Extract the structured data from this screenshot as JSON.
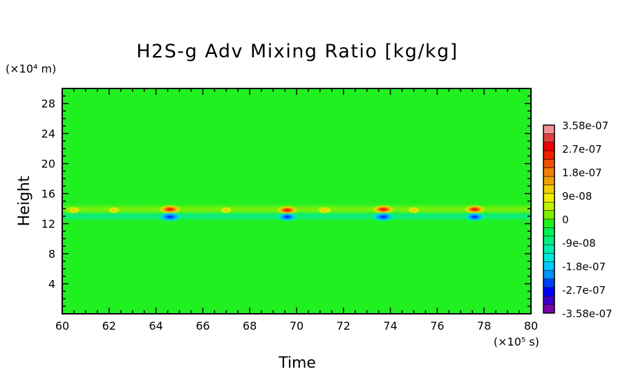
{
  "chart_data": {
    "type": "heatmap",
    "title": "H2S-g Adv Mixing Ratio [kg/kg]",
    "xlabel": "Time",
    "ylabel": "Height",
    "x_unit": "(×10⁵ s)",
    "y_unit": "(×10⁴ m)",
    "xlim": [
      60,
      80
    ],
    "ylim": [
      0,
      30
    ],
    "x_ticks": [
      "60",
      "62",
      "64",
      "66",
      "68",
      "70",
      "72",
      "74",
      "76",
      "78",
      "80"
    ],
    "y_ticks": [
      "4",
      "8",
      "12",
      "16",
      "20",
      "24",
      "28"
    ],
    "colorbar": {
      "labels": [
        "3.58e-07",
        "2.7e-07",
        "1.8e-07",
        "9e-08",
        "0",
        "-9e-08",
        "-1.8e-07",
        "-2.7e-07",
        "-3.58e-07"
      ],
      "range": [
        -3.58e-07,
        3.58e-07
      ],
      "colors": [
        "#7a00a8",
        "#3a00c8",
        "#0000ff",
        "#0040ff",
        "#0090ff",
        "#00c8ff",
        "#00e8e0",
        "#00f0b0",
        "#00f080",
        "#00f050",
        "#20f020",
        "#80f000",
        "#c0f000",
        "#f0f000",
        "#f0d000",
        "#f0a000",
        "#f08000",
        "#f05000",
        "#f02000",
        "#f00000",
        "#e04040",
        "#f09090"
      ]
    },
    "background_value": 0,
    "features": [
      {
        "time": 60.5,
        "height": 13.8,
        "value": 9e-08
      },
      {
        "time": 62.2,
        "height": 13.8,
        "value": 6e-08
      },
      {
        "time": 64.6,
        "height": 13.9,
        "value": 3e-07
      },
      {
        "time": 64.6,
        "height": 12.9,
        "value": -3e-07
      },
      {
        "time": 67.0,
        "height": 13.8,
        "value": 5e-08
      },
      {
        "time": 69.6,
        "height": 13.8,
        "value": 2.7e-07
      },
      {
        "time": 69.6,
        "height": 12.9,
        "value": -2.2e-07
      },
      {
        "time": 71.2,
        "height": 13.8,
        "value": 1.2e-07
      },
      {
        "time": 73.7,
        "height": 13.9,
        "value": 3e-07
      },
      {
        "time": 73.7,
        "height": 12.9,
        "value": -2.7e-07
      },
      {
        "time": 75.0,
        "height": 13.8,
        "value": 8e-08
      },
      {
        "time": 77.6,
        "height": 13.9,
        "value": 2.7e-07
      },
      {
        "time": 77.6,
        "height": 12.9,
        "value": -2.2e-07
      }
    ],
    "band": {
      "upper_height": 13.8,
      "upper_value": 9e-08,
      "lower_height": 12.9,
      "lower_value": -9e-08
    }
  }
}
